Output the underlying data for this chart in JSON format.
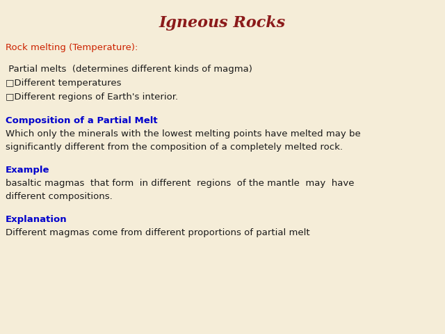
{
  "title": "Igneous Rocks",
  "title_color": "#8B1A1A",
  "title_fontsize": 16,
  "title_style": "italic",
  "background_color": "#F5EDD8",
  "section1_label": "Rock melting (Temperature):",
  "section1_color": "#CC2200",
  "section1_fontsize": 9.5,
  "body1_lines": [
    " Partial melts  (determines different kinds of magma)",
    "□Different temperatures",
    "□Different regions of Earth's interior."
  ],
  "body1_color": "#1a1a1a",
  "body1_fontsize": 9.5,
  "section2_label": "Composition of a Partial Melt",
  "section2_color": "#0000CC",
  "section2_fontsize": 9.5,
  "body2_lines": [
    "Which only the minerals with the lowest melting points have melted may be",
    "significantly different from the composition of a completely melted rock."
  ],
  "body2_color": "#1a1a1a",
  "body2_fontsize": 9.5,
  "section3_label": "Example",
  "section3_color": "#0000CC",
  "section3_fontsize": 9.5,
  "body3_lines": [
    "basaltic magmas  that form  in different  regions  of the mantle  may  have",
    "different compositions."
  ],
  "body3_color": "#1a1a1a",
  "body3_fontsize": 9.5,
  "section4_label": "Explanation",
  "section4_color": "#0000CC",
  "section4_fontsize": 9.5,
  "body4_lines": [
    "Different magmas come from different proportions of partial melt"
  ],
  "body4_color": "#1a1a1a",
  "body4_fontsize": 9.5,
  "figwidth": 6.4,
  "figheight": 4.8,
  "dpi": 100
}
